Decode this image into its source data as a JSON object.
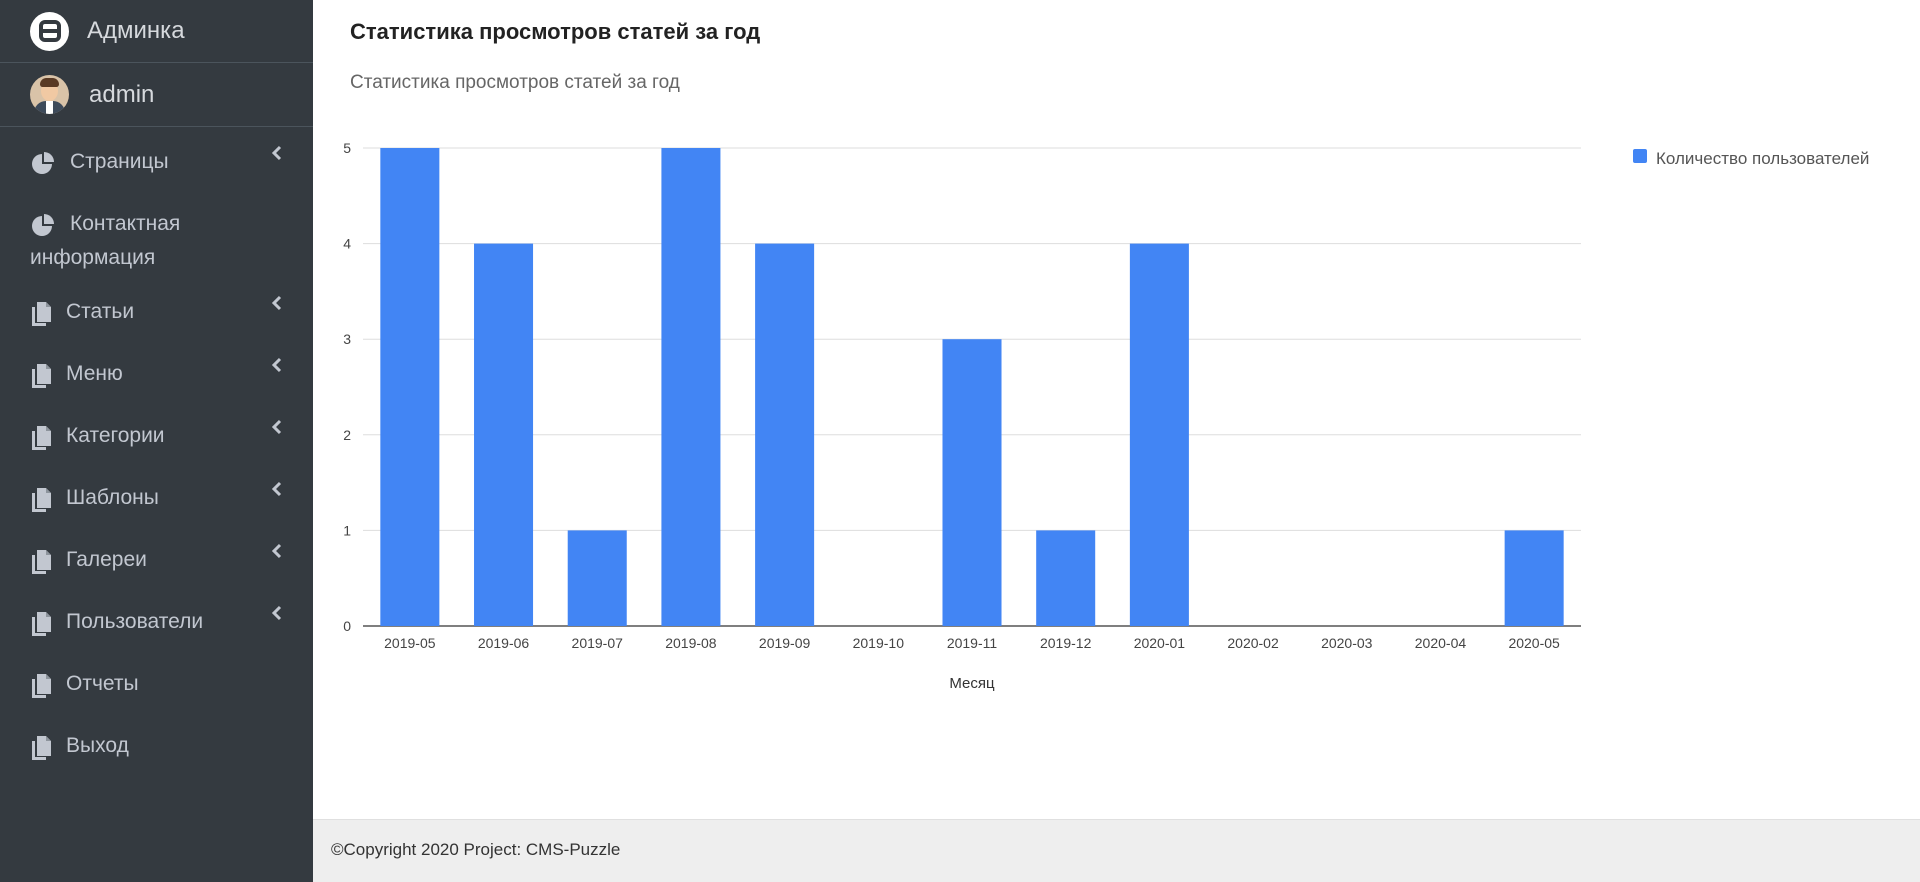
{
  "brand": {
    "name": "Админка"
  },
  "user": {
    "name": "admin"
  },
  "sidebar": {
    "items": [
      {
        "label": "Страницы",
        "icon": "pie-chart-icon",
        "has_children": true
      },
      {
        "label": "Контактная информация",
        "icon": "pie-chart-icon",
        "has_children": false
      },
      {
        "label": "Статьи",
        "icon": "copy-icon",
        "has_children": true
      },
      {
        "label": "Меню",
        "icon": "copy-icon",
        "has_children": true
      },
      {
        "label": "Категории",
        "icon": "copy-icon",
        "has_children": true
      },
      {
        "label": "Шаблоны",
        "icon": "copy-icon",
        "has_children": true
      },
      {
        "label": "Галереи",
        "icon": "copy-icon",
        "has_children": true
      },
      {
        "label": "Пользователи",
        "icon": "copy-icon",
        "has_children": true
      },
      {
        "label": "Отчеты",
        "icon": "copy-icon",
        "has_children": false
      },
      {
        "label": "Выход",
        "icon": "copy-icon",
        "has_children": false
      }
    ]
  },
  "page": {
    "title": "Статистика просмотров статей за год"
  },
  "chart_data": {
    "type": "bar",
    "title": "Статистика просмотров статей за год",
    "xlabel": "Месяц",
    "ylabel": "",
    "categories": [
      "2019-05",
      "2019-06",
      "2019-07",
      "2019-08",
      "2019-09",
      "2019-10",
      "2019-11",
      "2019-12",
      "2020-01",
      "2020-02",
      "2020-03",
      "2020-04",
      "2020-05"
    ],
    "series": [
      {
        "name": "Количество пользователей",
        "values": [
          5,
          4,
          1,
          5,
          4,
          0,
          3,
          1,
          4,
          0,
          0,
          0,
          1
        ]
      }
    ],
    "yticks": [
      "0",
      "1",
      "2",
      "3",
      "4",
      "5"
    ],
    "ylim": [
      0,
      5
    ],
    "grid": true,
    "legend": "right",
    "color": "#4285f4"
  },
  "footer": {
    "text": "©Copyright 2020 Project: CMS-Puzzle"
  }
}
